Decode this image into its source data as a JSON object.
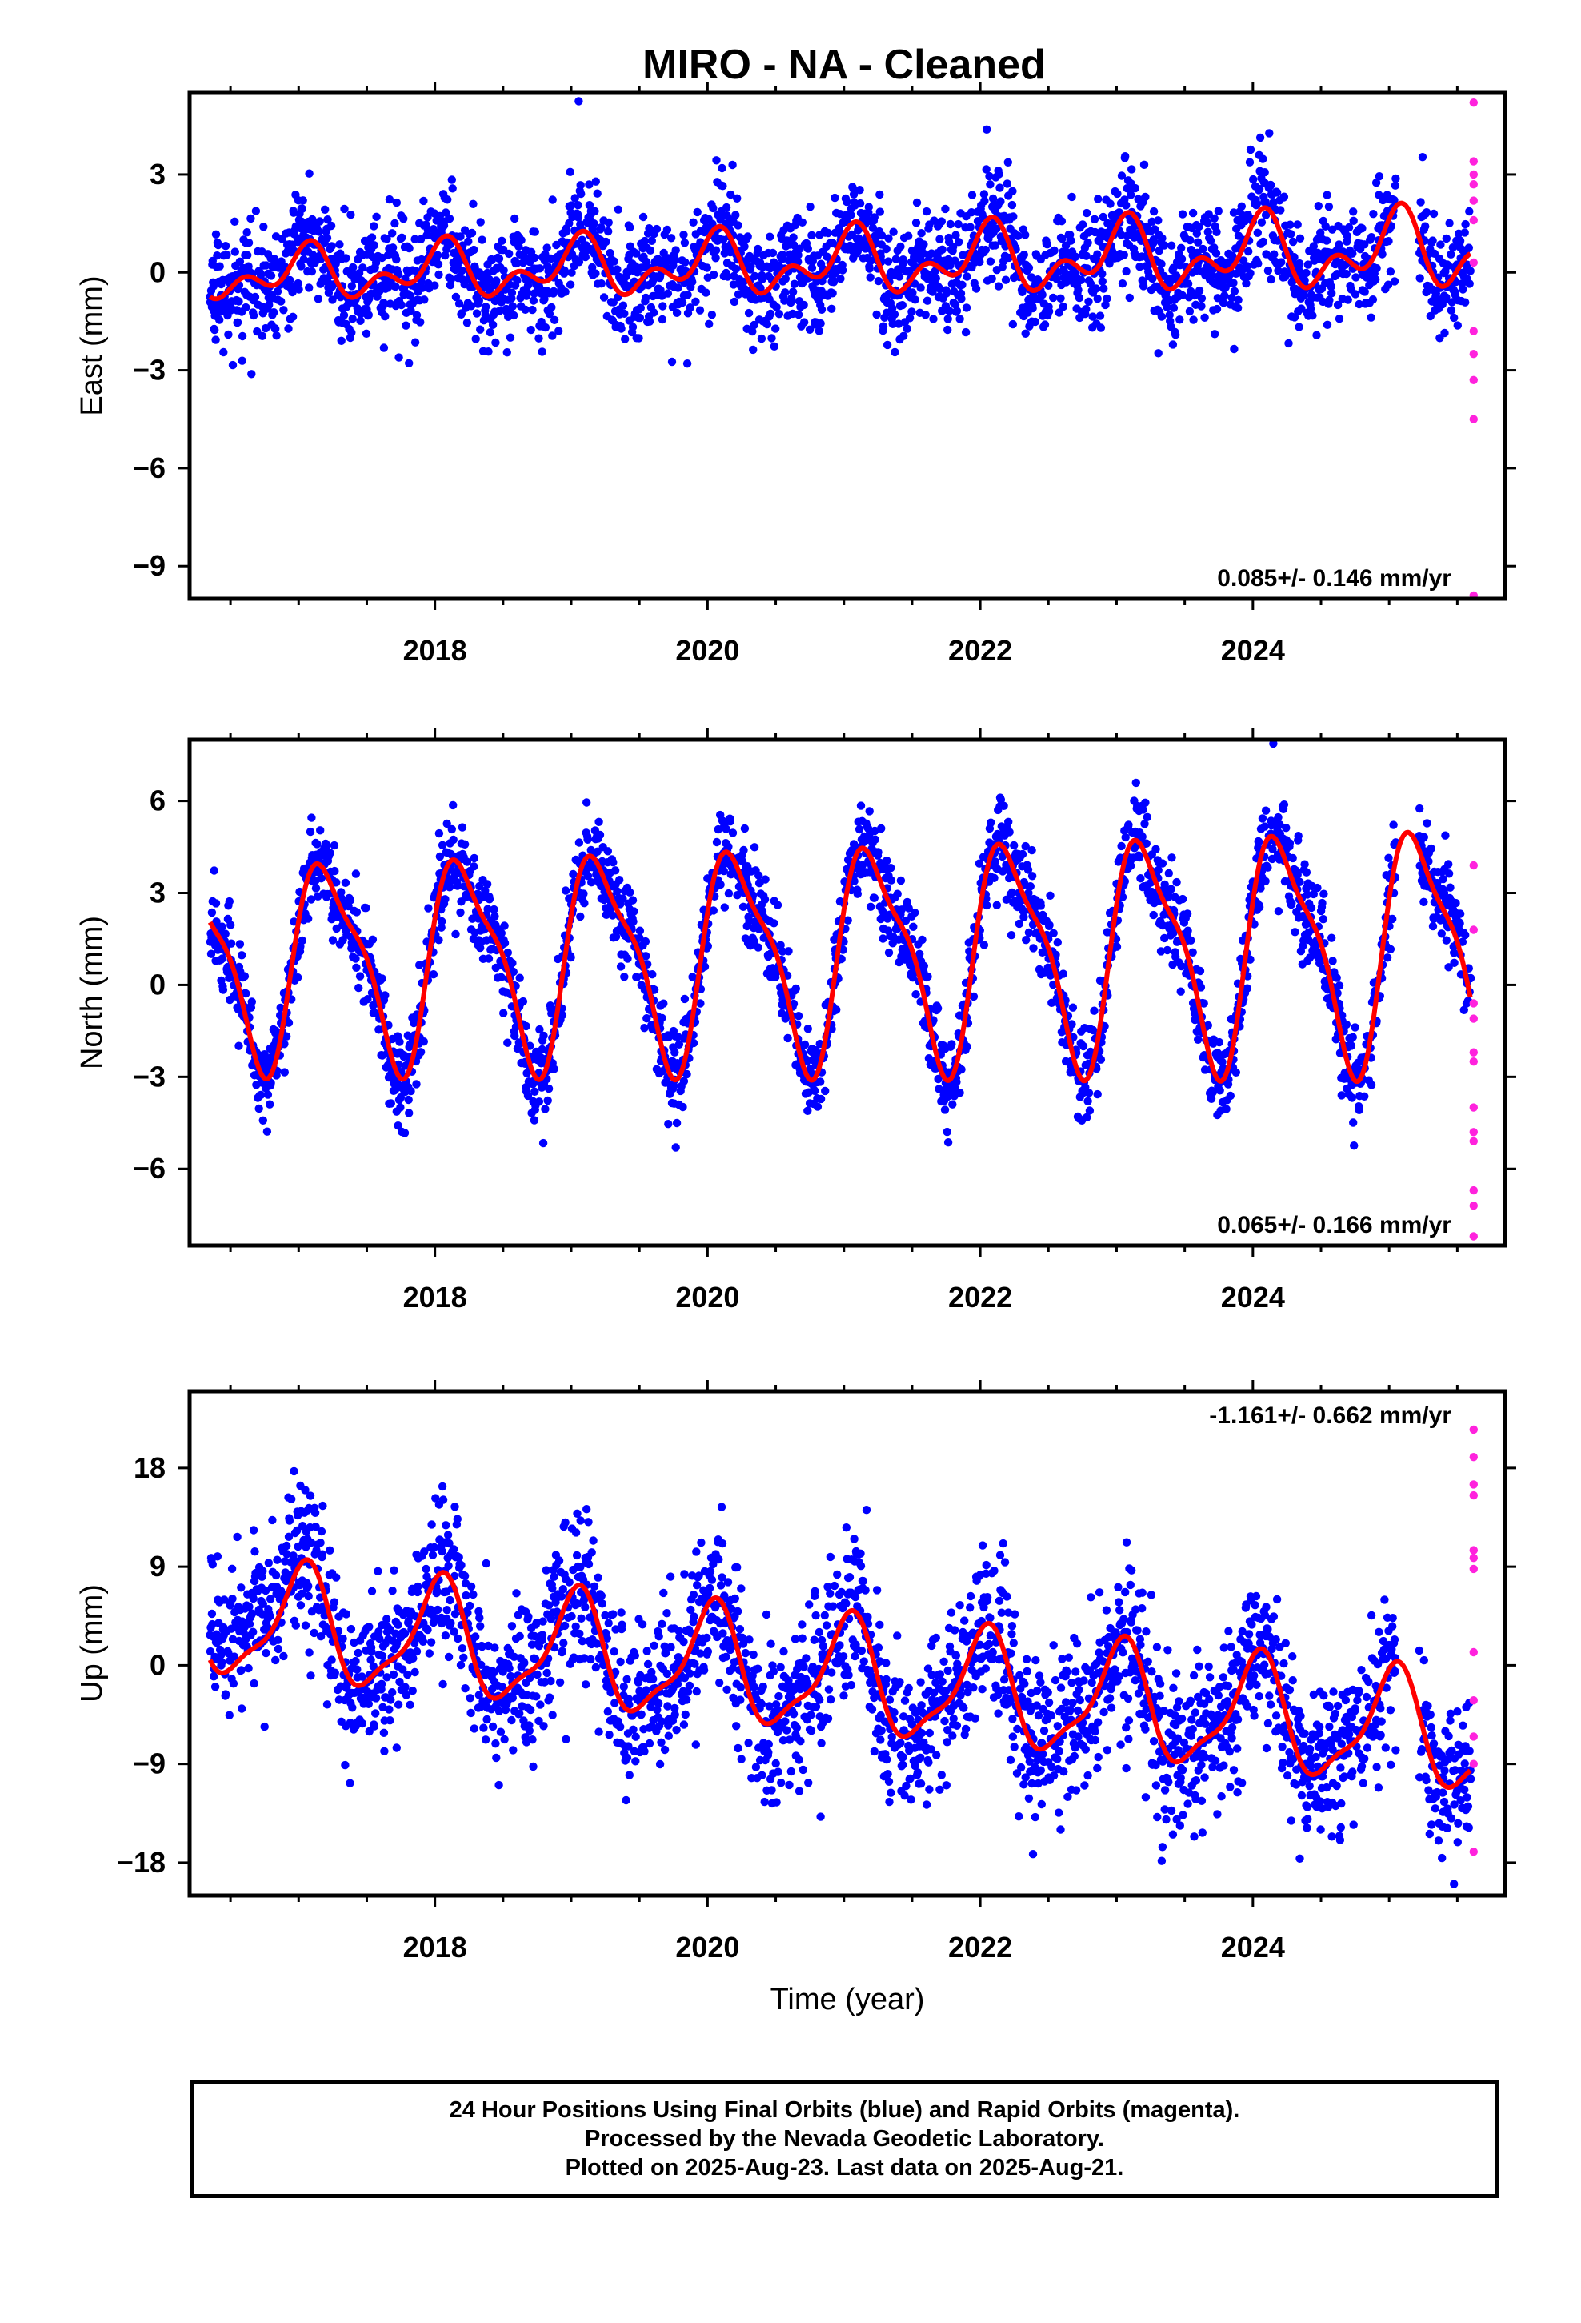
{
  "title": "MIRO  - NA - Cleaned",
  "colors": {
    "final": "#0000ff",
    "rapid": "#ff22dd",
    "model": "#ff0000",
    "frame": "#000000"
  },
  "footer": {
    "line1": "24 Hour Positions Using Final Orbits (blue) and Rapid Orbits (magenta).",
    "line2": "Processed by the Nevada Geodetic Laboratory.",
    "line3": "Plotted on 2025-Aug-23. Last data on 2025-Aug-21."
  },
  "chart_data": [
    {
      "type": "scatter",
      "name": "east",
      "ylabel": "East (mm)",
      "xlabel": "",
      "xlim": [
        2016.2,
        2025.85
      ],
      "ylim": [
        -10,
        5.5
      ],
      "xticks": [
        2018,
        2020,
        2022,
        2024
      ],
      "yticks": [
        3,
        0,
        -3,
        -6,
        -9
      ],
      "ytick_labels": [
        "3",
        "0",
        "−3",
        "−6",
        "−9"
      ],
      "rate_text": "0.085+/- 0.146 mm/yr",
      "rate_position": "bottom-right",
      "model": {
        "offset": -0.1,
        "rate": 0.085,
        "a1": 0.55,
        "p1": 1.3,
        "a2": 0.45,
        "p2": 0.3,
        "amp_growth": 0.06,
        "t0": 2016.35,
        "t1": 2025.6
      },
      "final_range": [
        2016.35,
        2025.6
      ],
      "noise": 0.85,
      "rapid": {
        "x": 2025.62,
        "y": [
          5.2,
          3.4,
          3.0,
          2.7,
          2.2,
          1.6,
          0.3,
          -1.8,
          -2.5,
          -3.3,
          -4.5,
          -9.9
        ]
      }
    },
    {
      "type": "scatter",
      "name": "north",
      "ylabel": "North (mm)",
      "xlabel": "",
      "xlim": [
        2016.2,
        2025.85
      ],
      "ylim": [
        -8.5,
        8
      ],
      "xticks": [
        2018,
        2020,
        2022,
        2024
      ],
      "yticks": [
        6,
        3,
        0,
        -3,
        -6
      ],
      "ytick_labels": [
        "6",
        "3",
        "0",
        "−3",
        "−6"
      ],
      "rate_text": "0.065+/- 0.166 mm/yr",
      "rate_position": "bottom-right",
      "model": {
        "offset": 0.7,
        "rate": 0.065,
        "a1": 3.1,
        "p1": 0.2,
        "a2": 0.9,
        "p2": 0.9,
        "amp_growth": 0.02,
        "t0": 2016.35,
        "t1": 2025.6
      },
      "final_range": [
        2016.35,
        2025.6
      ],
      "noise": 0.75,
      "rapid": {
        "x": 2025.62,
        "y": [
          3.9,
          1.8,
          -0.6,
          -1.1,
          -2.2,
          -2.5,
          -4.0,
          -4.8,
          -5.1,
          -6.7,
          -7.2,
          -8.2
        ]
      }
    },
    {
      "type": "scatter",
      "name": "up",
      "ylabel": "Up (mm)",
      "xlabel": "Time (year)",
      "xlim": [
        2016.2,
        2025.85
      ],
      "ylim": [
        -21,
        25
      ],
      "xticks": [
        2018,
        2020,
        2022,
        2024
      ],
      "yticks": [
        18,
        9,
        0,
        -9,
        -18
      ],
      "ytick_labels": [
        "18",
        "9",
        "0",
        "−9",
        "−18"
      ],
      "rate_text": "-1.161+/- 0.662 mm/yr",
      "rate_position": "top-right",
      "model": {
        "offset": 4.2,
        "rate": -1.161,
        "a1": 5.0,
        "p1": 1.4,
        "a2": 1.5,
        "p2": 0.4,
        "amp_growth": 0.0,
        "t0": 2016.35,
        "t1": 2025.6
      },
      "final_range": [
        2016.35,
        2025.6
      ],
      "noise": 3.6,
      "rapid": {
        "x": 2025.62,
        "y": [
          21.5,
          19.0,
          16.5,
          15.5,
          10.5,
          9.8,
          8.8,
          1.2,
          -3.2,
          -6.5,
          -9.0,
          -17.0
        ]
      }
    }
  ]
}
